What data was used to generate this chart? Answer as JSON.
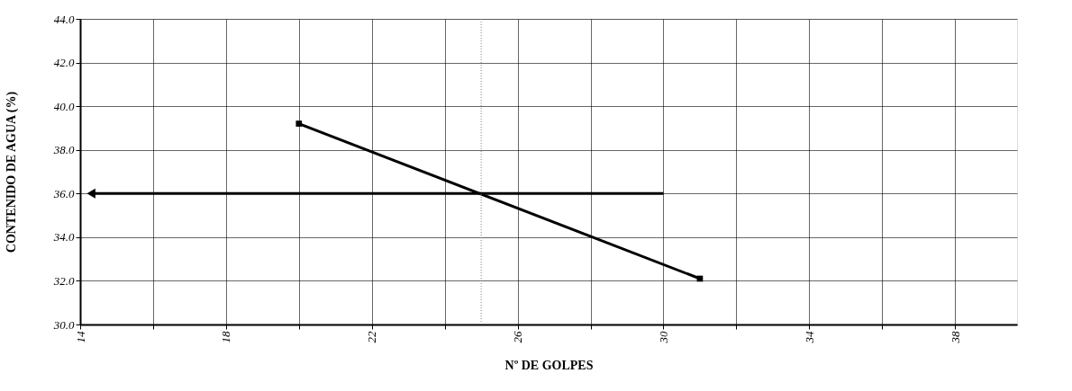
{
  "chart_data": {
    "type": "line",
    "xlabel": "Nº DE GOLPES",
    "ylabel": "CONTENIDO DE AGUA (%)",
    "series": [
      {
        "color": "#000000",
        "marker": "square",
        "x": [
          20,
          31
        ],
        "values": [
          39.2,
          32.1
        ]
      },
      {
        "color": "#000000",
        "marker": "triangle",
        "x": [
          30,
          14.3
        ],
        "values": [
          36.0,
          36.0
        ]
      }
    ],
    "ref_lines": [
      {
        "axis": "x",
        "value": 25,
        "color": "#808080",
        "line_style": "dotted"
      }
    ],
    "xlim": [
      14,
      39.7
    ],
    "xticks": [
      14,
      {
        "value": 16,
        "label": null
      },
      18,
      {
        "value": 20,
        "label": null
      },
      22,
      {
        "value": 24,
        "label": null
      },
      26,
      {
        "value": 28,
        "label": null
      },
      30,
      {
        "value": 32,
        "label": null
      },
      34,
      {
        "value": 36,
        "label": null
      },
      38
    ],
    "ylim": [
      30,
      44
    ],
    "yticks": [
      {
        "value": 30,
        "label": "30.0"
      },
      {
        "value": 32,
        "label": "32.0"
      },
      {
        "value": 34,
        "label": "34.0"
      },
      {
        "value": 36,
        "label": "36.0"
      },
      {
        "value": 38,
        "label": "38.0"
      },
      {
        "value": 40,
        "label": "40.0"
      },
      {
        "value": 42,
        "label": "42.0"
      },
      {
        "value": 44,
        "label": "44.0"
      }
    ],
    "grid": true
  }
}
